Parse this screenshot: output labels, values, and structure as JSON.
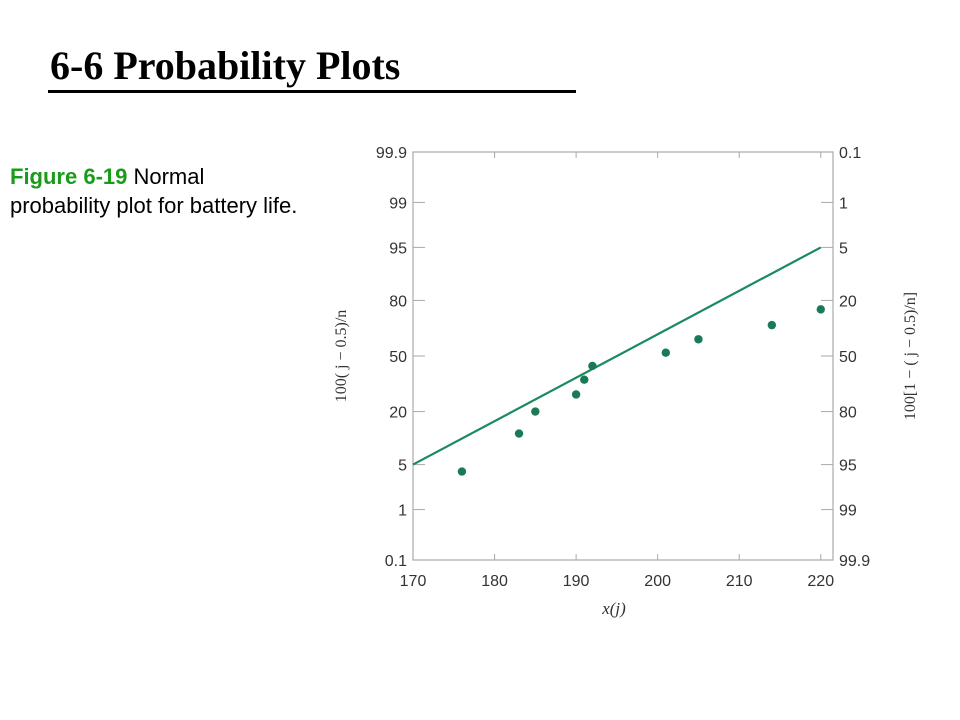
{
  "slide": {
    "title": "6-6 Probability Plots",
    "caption_label": "Figure 6-19",
    "caption_text": " Normal probability plot for battery life."
  },
  "chart_data": {
    "type": "scatter",
    "x_ticks": [
      170,
      180,
      190,
      200,
      210,
      220
    ],
    "xlim": [
      170,
      221.5
    ],
    "xlabel": "x(j)",
    "ylabel_left": "100( j − 0.5)/n",
    "ylabel_right": "100[1 − ( j − 0.5)/n]",
    "y_ticks_left": [
      "99.9",
      "99",
      "95",
      "80",
      "50",
      "20",
      "5",
      "1",
      "0.1"
    ],
    "y_ticks_right": [
      "0.1",
      "1",
      "5",
      "20",
      "50",
      "80",
      "95",
      "99",
      "99.9"
    ],
    "y_scale": "normal probability",
    "grid": false,
    "points": [
      {
        "x": 176,
        "y": 4
      },
      {
        "x": 183,
        "y": 12
      },
      {
        "x": 185,
        "y": 20
      },
      {
        "x": 190,
        "y": 28
      },
      {
        "x": 191,
        "y": 36
      },
      {
        "x": 192,
        "y": 44
      },
      {
        "x": 201,
        "y": 52
      },
      {
        "x": 205,
        "y": 60
      },
      {
        "x": 214,
        "y": 68
      },
      {
        "x": 220,
        "y": 76
      }
    ],
    "fit_line": {
      "x": [
        170,
        220
      ],
      "y": [
        5,
        95
      ]
    },
    "colors": {
      "points": "#1a7a55",
      "line": "#1a8a60",
      "axes": "#aaaaaa",
      "text": "#333333"
    }
  }
}
